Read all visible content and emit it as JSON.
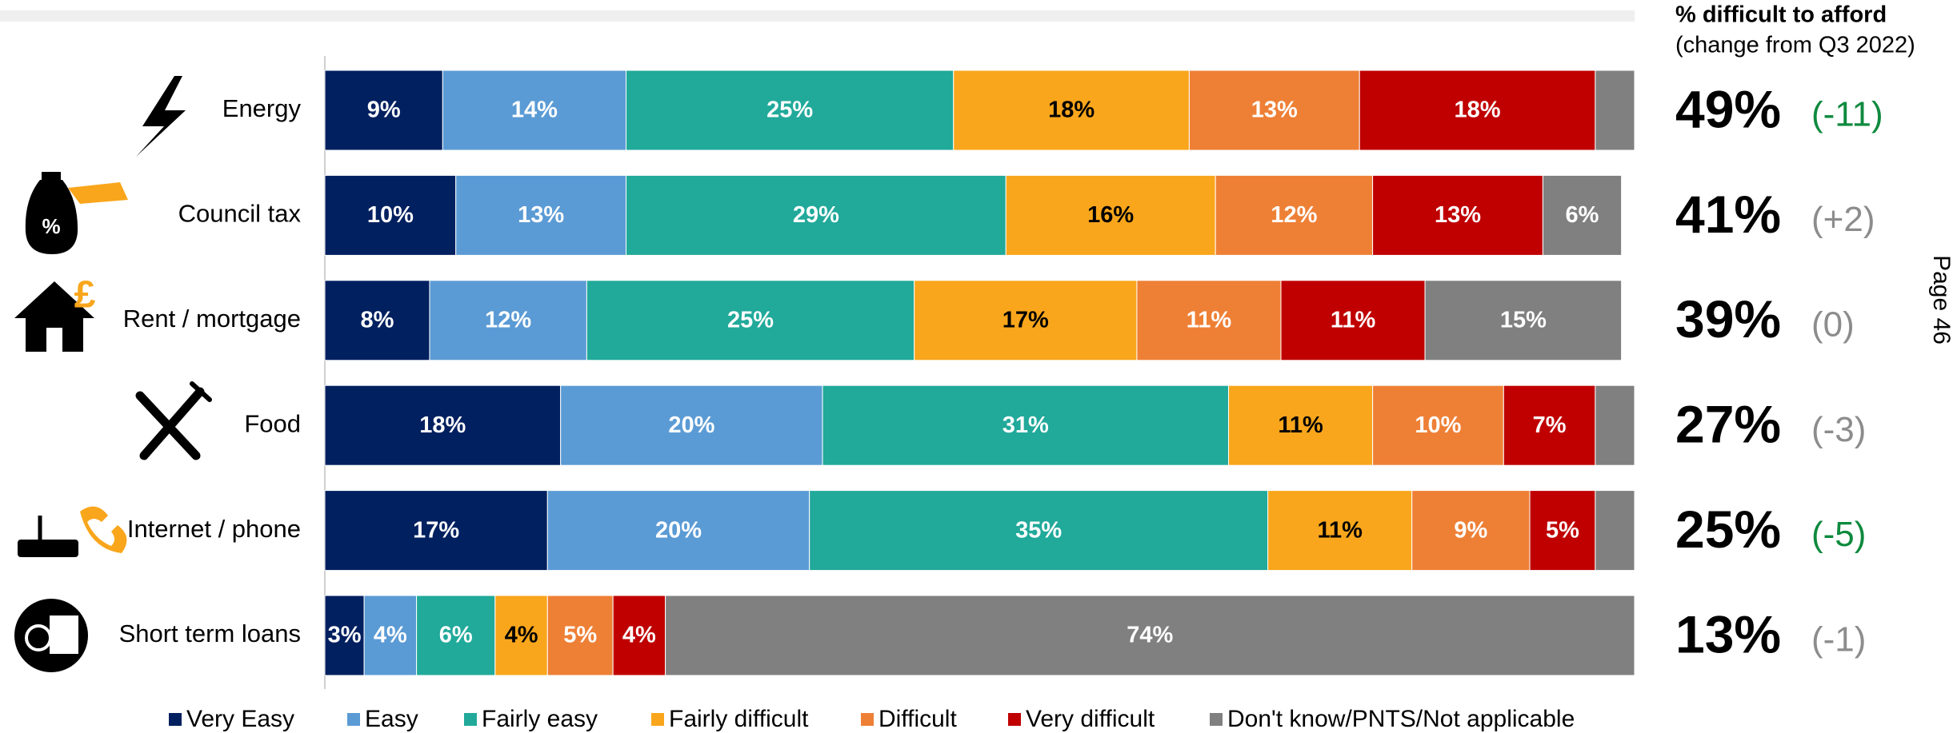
{
  "chart_data": {
    "type": "stacked_bar_horizontal",
    "categories": [
      "Energy",
      "Council tax",
      "Rent / mortgage",
      "Food",
      "Internet / phone",
      "Short term loans"
    ],
    "xlim": [
      0,
      100
    ],
    "series": [
      {
        "name": "Very Easy",
        "color": "#002060",
        "label_color": "#ffffff",
        "values": [
          9,
          10,
          8,
          18,
          17,
          3
        ],
        "value_labels": [
          "9%",
          "10%",
          "8%",
          "18%",
          "17%",
          "3%"
        ]
      },
      {
        "name": "Easy",
        "color": "#5b9bd5",
        "label_color": "#ffffff",
        "values": [
          14,
          13,
          12,
          20,
          20,
          4
        ],
        "value_labels": [
          "14%",
          "13%",
          "12%",
          "20%",
          "20%",
          "4%"
        ]
      },
      {
        "name": "Fairly easy",
        "color": "#21a99a",
        "label_color": "#ffffff",
        "values": [
          25,
          29,
          25,
          31,
          35,
          6
        ],
        "value_labels": [
          "25%",
          "29%",
          "25%",
          "31%",
          "35%",
          "6%"
        ]
      },
      {
        "name": "Fairly difficult",
        "color": "#f9a61c",
        "label_color": "#000000",
        "values": [
          18,
          16,
          17,
          11,
          11,
          4
        ],
        "value_labels": [
          "18%",
          "16%",
          "17%",
          "11%",
          "11%",
          "4%"
        ]
      },
      {
        "name": "Difficult",
        "color": "#ee8036",
        "label_color": "#ffffff",
        "values": [
          13,
          12,
          11,
          10,
          9,
          5
        ],
        "value_labels": [
          "13%",
          "12%",
          "11%",
          "10%",
          "9%",
          "5%"
        ]
      },
      {
        "name": "Very difficult",
        "color": "#c00000",
        "label_color": "#ffffff",
        "values": [
          18,
          13,
          11,
          7,
          5,
          4
        ],
        "value_labels": [
          "18%",
          "13%",
          "11%",
          "7%",
          "5%",
          "4%"
        ]
      },
      {
        "name": "Don't know/PNTS/Not applicable",
        "color": "#808080",
        "label_color": "#ffffff",
        "values": [
          3,
          6,
          15,
          3,
          3,
          74
        ],
        "value_labels": [
          null,
          "6%",
          "15%",
          null,
          null,
          "74%"
        ]
      }
    ],
    "summary": {
      "title": "% difficult to afford",
      "subtitle": "(change from Q3 2022)",
      "values": [
        49,
        41,
        39,
        27,
        25,
        13
      ],
      "value_labels": [
        "49%",
        "41%",
        "39%",
        "27%",
        "25%",
        "13%"
      ],
      "changes": [
        -11,
        2,
        0,
        -3,
        -5,
        -1
      ],
      "change_labels": [
        "(-11)",
        "(+2)",
        "(0)",
        "(-3)",
        "(-5)",
        "(-1)"
      ],
      "change_colors": [
        "#0e8a3e",
        "#8c8c8c",
        "#8c8c8c",
        "#8c8c8c",
        "#0e8a3e",
        "#8c8c8c"
      ]
    },
    "page_label": "Page 46"
  }
}
